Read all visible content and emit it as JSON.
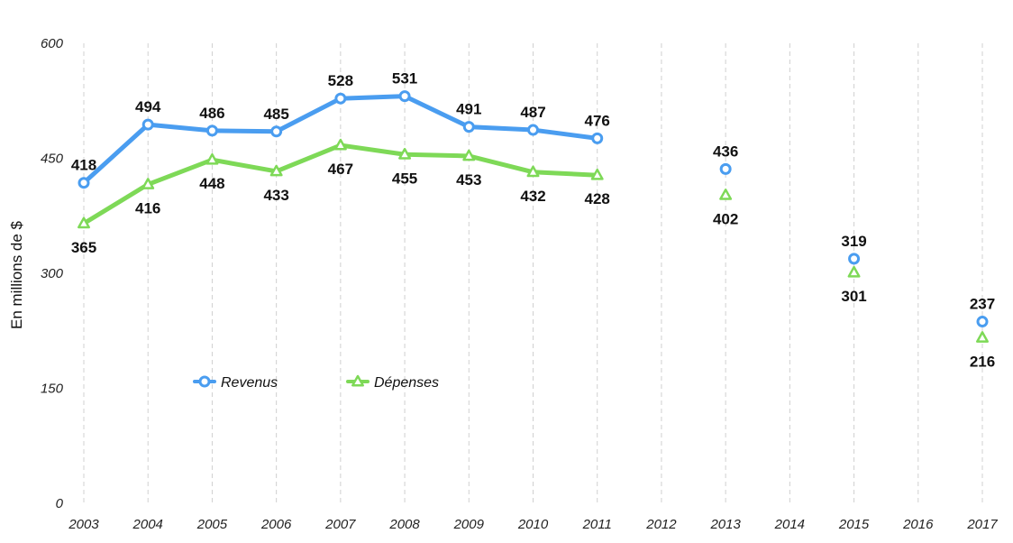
{
  "chart_data": {
    "type": "line",
    "ylabel": "En millions de $",
    "ylim": [
      0,
      600
    ],
    "yticks": [
      0,
      150,
      300,
      450,
      600
    ],
    "categories": [
      "2003",
      "2004",
      "2005",
      "2006",
      "2007",
      "2008",
      "2009",
      "2010",
      "2011",
      "2012",
      "2013",
      "2014",
      "2015",
      "2016",
      "2017"
    ],
    "grid": "vertical dashed",
    "legend_position": "lower-left",
    "series": [
      {
        "name": "Revenus",
        "color": "#4a9df0",
        "marker": "circle",
        "values": [
          418,
          494,
          486,
          485,
          528,
          531,
          491,
          487,
          476,
          null,
          436,
          null,
          319,
          null,
          237
        ]
      },
      {
        "name": "Dépenses",
        "color": "#7ed957",
        "marker": "triangle",
        "values": [
          365,
          416,
          448,
          433,
          467,
          455,
          453,
          432,
          428,
          null,
          402,
          null,
          301,
          null,
          216
        ]
      }
    ]
  }
}
